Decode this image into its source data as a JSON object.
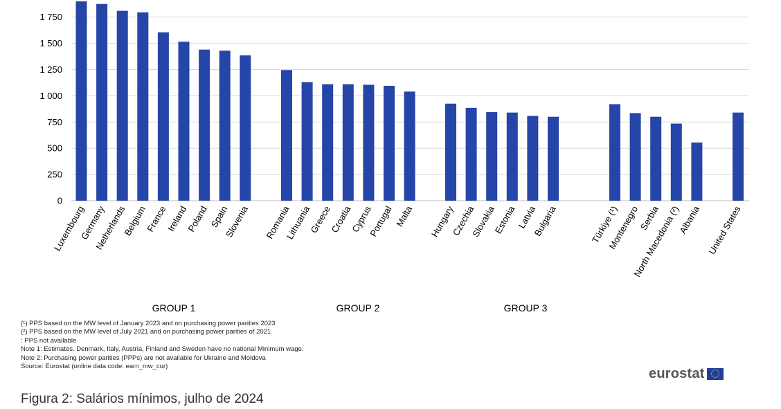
{
  "chart_data": {
    "type": "bar",
    "categories": [
      "Luxembourg",
      "Germany",
      "Netherlands",
      "Belgium",
      "France",
      "Ireland",
      "Poland",
      "Spain",
      "Slovenia",
      "Romania",
      "Lithuania",
      "Greece",
      "Croatia",
      "Cyprus",
      "Portugal",
      "Malta",
      "Hungary",
      "Czechia",
      "Slovakia",
      "Estonia",
      "Latvia",
      "Bulgaria",
      "Türkiye (¹)",
      "Montenegro",
      "Serbia",
      "North Macedonia (²)",
      "Albania",
      "United States"
    ],
    "values": [
      1900,
      1875,
      1810,
      1795,
      1605,
      1515,
      1440,
      1430,
      1385,
      1245,
      1130,
      1110,
      1110,
      1105,
      1095,
      1040,
      925,
      885,
      845,
      840,
      808,
      800,
      920,
      835,
      800,
      735,
      555,
      840
    ],
    "groups": [
      0,
      0,
      0,
      0,
      0,
      0,
      0,
      0,
      0,
      1,
      1,
      1,
      1,
      1,
      1,
      1,
      2,
      2,
      2,
      2,
      2,
      2,
      3,
      3,
      3,
      3,
      3,
      4
    ],
    "yticks": [
      "0",
      "250",
      "500",
      "750",
      "1 000",
      "1 250",
      "1 500",
      "1 750"
    ],
    "ytick_values": [
      0,
      250,
      500,
      750,
      1000,
      1250,
      1500,
      1750
    ],
    "ylim": [
      0,
      1900
    ],
    "grid": true,
    "bar_color": "#2645a8",
    "grid_color": "#d9d9d9"
  },
  "group_labels": [
    "GROUP 1",
    "GROUP 2",
    "GROUP 3"
  ],
  "notes": [
    "(¹) PPS based on the MW level of January 2023  and on purchasing power parities 2023",
    "(²) PPS based on the MW level of July 2021 and on purchasing power parities of 2021",
    ":  PPS not available",
    "Note 1: Estimates. Denmark, Italy, Austria, Finland and Sweden have no national Minimum wage.",
    "Note 2: Purchasing power parities (PPPs) are not available for Ukraine and Moldova",
    "Source: Eurostat (online data code: earn_mw_cur)"
  ],
  "logo_text": "eurostat",
  "caption": "Figura 2: Salários mínimos, julho de 2024"
}
